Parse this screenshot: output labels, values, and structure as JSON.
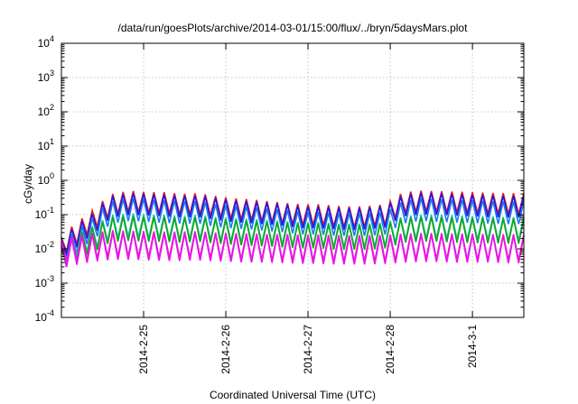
{
  "chart_data": {
    "type": "line",
    "title": "/data/run/goesPlots/archive/2014-03-01/15:00/flux/../bryn/5daysMars.plot",
    "xlabel": "Coordinated Universal Time (UTC)",
    "ylabel": "cGy/day",
    "yscale": "log",
    "ylim": [
      0.0001,
      10000
    ],
    "xlim": [
      "2014-02-24T00:00",
      "2014-03-01T15:00"
    ],
    "grid": true,
    "legend": "none",
    "yticks": [
      {
        "base": "10",
        "exp": "-4"
      },
      {
        "base": "10",
        "exp": "-3"
      },
      {
        "base": "10",
        "exp": "-2"
      },
      {
        "base": "10",
        "exp": "-1"
      },
      {
        "base": "10",
        "exp": "0"
      },
      {
        "base": "10",
        "exp": "1"
      },
      {
        "base": "10",
        "exp": "2"
      },
      {
        "base": "10",
        "exp": "3"
      },
      {
        "base": "10",
        "exp": "4"
      }
    ],
    "xticks": [
      {
        "label": "2014-2-25",
        "date": "2014-02-25T00:00"
      },
      {
        "label": "2014-2-26",
        "date": "2014-02-26T00:00"
      },
      {
        "label": "2014-2-27",
        "date": "2014-02-27T00:00"
      },
      {
        "label": "2014-2-28",
        "date": "2014-02-28T00:00"
      },
      {
        "label": "2014-3-1",
        "date": "2014-03-01T00:00"
      }
    ],
    "series": [
      {
        "color": "#e8191b",
        "values": [
          0.022,
          0.06,
          0.15,
          0.4,
          0.5,
          0.45,
          0.45,
          0.4,
          0.42,
          0.35,
          0.3,
          0.28,
          0.25,
          0.22,
          0.2,
          0.2,
          0.18,
          0.17,
          0.18,
          0.2,
          0.45,
          0.5,
          0.48,
          0.47,
          0.45,
          0.43,
          0.42,
          0.42
        ]
      },
      {
        "color": "#1a1aee",
        "values": [
          0.02,
          0.05,
          0.12,
          0.35,
          0.42,
          0.4,
          0.38,
          0.35,
          0.36,
          0.3,
          0.26,
          0.24,
          0.22,
          0.2,
          0.17,
          0.17,
          0.16,
          0.15,
          0.16,
          0.18,
          0.38,
          0.43,
          0.42,
          0.4,
          0.38,
          0.36,
          0.35,
          0.35
        ]
      },
      {
        "color": "#1e7ae6",
        "values": [
          0.015,
          0.035,
          0.09,
          0.25,
          0.3,
          0.28,
          0.26,
          0.25,
          0.25,
          0.2,
          0.18,
          0.17,
          0.15,
          0.14,
          0.12,
          0.12,
          0.11,
          0.11,
          0.11,
          0.12,
          0.25,
          0.3,
          0.28,
          0.27,
          0.26,
          0.25,
          0.24,
          0.24
        ]
      },
      {
        "color": "#1fc4a8",
        "values": [
          0.012,
          0.03,
          0.05,
          0.1,
          0.11,
          0.1,
          0.1,
          0.09,
          0.1,
          0.085,
          0.08,
          0.075,
          0.07,
          0.065,
          0.06,
          0.06,
          0.055,
          0.055,
          0.055,
          0.06,
          0.09,
          0.1,
          0.1,
          0.095,
          0.09,
          0.09,
          0.085,
          0.085
        ]
      },
      {
        "color": "#13a51d",
        "values": [
          0.011,
          0.027,
          0.045,
          0.085,
          0.09,
          0.085,
          0.085,
          0.08,
          0.085,
          0.075,
          0.07,
          0.065,
          0.062,
          0.058,
          0.055,
          0.055,
          0.05,
          0.05,
          0.05,
          0.055,
          0.08,
          0.085,
          0.085,
          0.08,
          0.078,
          0.077,
          0.075,
          0.075
        ]
      },
      {
        "color": "#d228c8",
        "values": [
          0.02,
          0.025,
          0.03,
          0.035,
          0.034,
          0.033,
          0.032,
          0.032,
          0.033,
          0.03,
          0.029,
          0.028,
          0.027,
          0.027,
          0.026,
          0.026,
          0.025,
          0.025,
          0.025,
          0.026,
          0.028,
          0.029,
          0.029,
          0.028,
          0.028,
          0.027,
          0.027,
          0.027
        ]
      },
      {
        "color": "#ee10ee",
        "values": [
          0.017,
          0.022,
          0.027,
          0.03,
          0.03,
          0.029,
          0.028,
          0.028,
          0.029,
          0.027,
          0.026,
          0.025,
          0.025,
          0.024,
          0.023,
          0.023,
          0.022,
          0.022,
          0.022,
          0.023,
          0.025,
          0.026,
          0.026,
          0.025,
          0.025,
          0.025,
          0.024,
          0.024
        ]
      }
    ]
  }
}
